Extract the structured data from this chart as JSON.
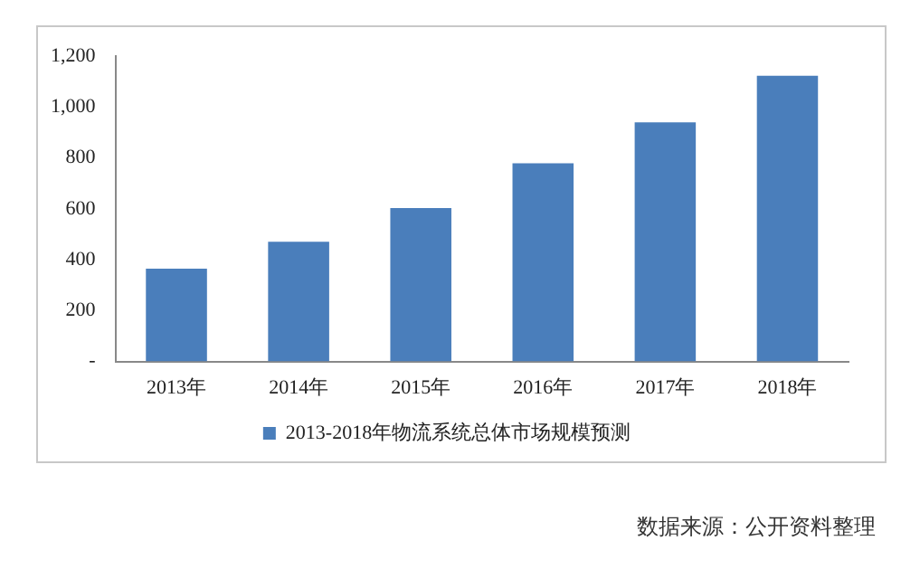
{
  "chart_data": {
    "type": "bar",
    "categories": [
      "2013年",
      "2014年",
      "2015年",
      "2016年",
      "2017年",
      "2018年"
    ],
    "series": [
      {
        "name": "2013-2018年物流系统总体市场规模预测",
        "color": "#4a7ebb",
        "values": [
          365,
          470,
          603,
          779,
          940,
          1123
        ]
      }
    ],
    "ylim": [
      0,
      1200
    ],
    "yticks": [
      {
        "value": 0,
        "label": "-"
      },
      200,
      400,
      600,
      800,
      {
        "value": 1000,
        "label": "1,000"
      },
      {
        "value": 1200,
        "label": "1,200"
      }
    ],
    "legend": "bottom",
    "annotations": [
      "数据来源：公开资料整理"
    ]
  }
}
